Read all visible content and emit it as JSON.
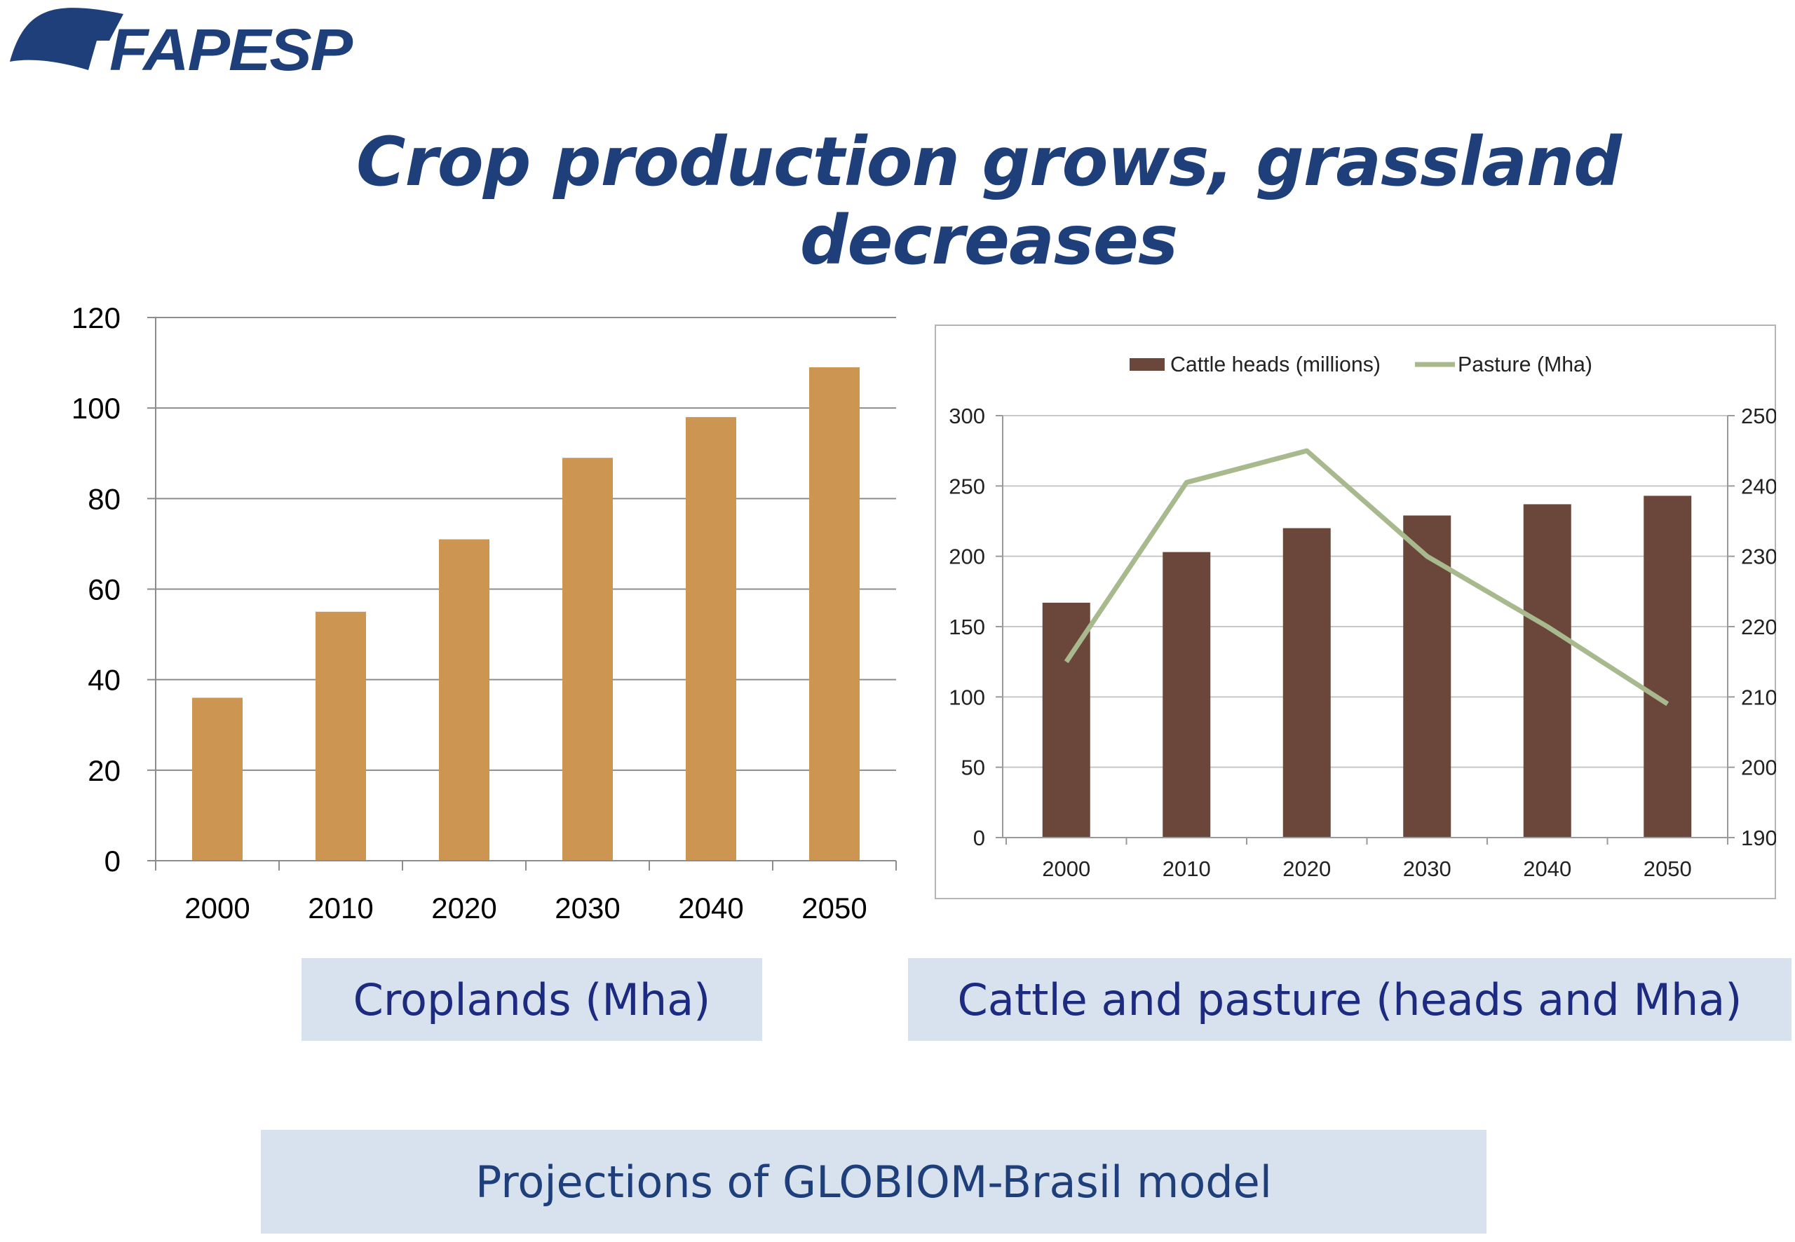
{
  "logo": {
    "text": "FAPESP",
    "color": "#1f3f7a"
  },
  "title": "Crop production grows, grassland decreases",
  "captions": {
    "left": "Croplands (Mha)",
    "right": "Cattle and pasture (heads and Mha)",
    "footer": "Projections of GLOBIOM-Brasil model"
  },
  "colors": {
    "title": "#1f3f7a",
    "crop_bar": "#cc9552",
    "cattle_bar": "#6b473b",
    "pasture_line": "#a8b98e",
    "caption_bg": "#d7e2ee",
    "caption_text": "#1c2a80"
  },
  "chart_data": [
    {
      "type": "bar",
      "title": "",
      "xlabel": "",
      "ylabel": "",
      "categories": [
        "2000",
        "2010",
        "2020",
        "2030",
        "2040",
        "2050"
      ],
      "values": [
        36,
        55,
        71,
        89,
        98,
        109
      ],
      "ylim": [
        0,
        120
      ],
      "yticks": [
        0,
        20,
        40,
        60,
        80,
        100,
        120
      ],
      "grid": true,
      "legend": "none"
    },
    {
      "type": "bar",
      "title": "",
      "categories": [
        "2000",
        "2010",
        "2020",
        "2030",
        "2040",
        "2050"
      ],
      "series": [
        {
          "name": "Cattle heads (millions)",
          "type": "bar",
          "axis": "left",
          "values": [
            167,
            203,
            220,
            229,
            237,
            243
          ]
        },
        {
          "name": "Pasture (Mha)",
          "type": "line",
          "axis": "right",
          "values": [
            215,
            240.5,
            245,
            230,
            220,
            209
          ]
        }
      ],
      "ylim_left": [
        0,
        300
      ],
      "yticks_left": [
        0,
        50,
        100,
        150,
        200,
        250,
        300
      ],
      "ylim_right": [
        190,
        250
      ],
      "yticks_right": [
        190,
        200,
        210,
        220,
        230,
        240,
        250
      ],
      "grid": true,
      "legend": "top-center"
    }
  ]
}
